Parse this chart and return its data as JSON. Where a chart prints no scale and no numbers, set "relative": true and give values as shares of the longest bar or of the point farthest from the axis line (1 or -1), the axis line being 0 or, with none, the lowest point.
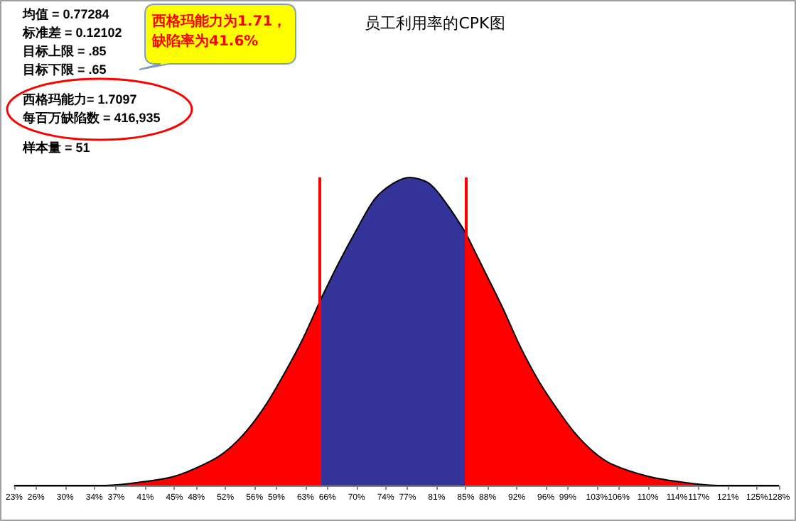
{
  "chart_data": {
    "type": "area",
    "title": "员工利用率的CPK图",
    "relative": true,
    "xlim": [
      23,
      128
    ],
    "xticks": [
      {
        "value": 23,
        "label": "23%"
      },
      {
        "value": 26,
        "label": "26%"
      },
      {
        "value": 30,
        "label": "30%"
      },
      {
        "value": 34,
        "label": "34%"
      },
      {
        "value": 37,
        "label": "37%"
      },
      {
        "value": 41,
        "label": "41%"
      },
      {
        "value": 45,
        "label": "45%"
      },
      {
        "value": 48,
        "label": "48%"
      },
      {
        "value": 52,
        "label": "52%"
      },
      {
        "value": 56,
        "label": "56%"
      },
      {
        "value": 59,
        "label": "59%"
      },
      {
        "value": 63,
        "label": "63%"
      },
      {
        "value": 66,
        "label": "66%"
      },
      {
        "value": 70,
        "label": "70%"
      },
      {
        "value": 74,
        "label": "74%"
      },
      {
        "value": 77,
        "label": "77%"
      },
      {
        "value": 81,
        "label": "81%"
      },
      {
        "value": 85,
        "label": "85%"
      },
      {
        "value": 88,
        "label": "88%"
      },
      {
        "value": 92,
        "label": "92%"
      },
      {
        "value": 96,
        "label": "96%"
      },
      {
        "value": 99,
        "label": "99%"
      },
      {
        "value": 103,
        "label": "103%"
      },
      {
        "value": 106,
        "label": "106%"
      },
      {
        "value": 110,
        "label": "110%"
      },
      {
        "value": 114,
        "label": "114%"
      },
      {
        "value": 117,
        "label": "117%"
      },
      {
        "value": 121,
        "label": "121%"
      },
      {
        "value": 125,
        "label": "125%"
      },
      {
        "value": 128,
        "label": "128%"
      }
    ],
    "series": [
      {
        "color": "#ff0000",
        "x": [
          23,
          30,
          35,
          40,
          45,
          50,
          52.5,
          55,
          57.5,
          60,
          62.5,
          65
        ],
        "values": [
          0,
          0,
          0,
          0.01,
          0.03,
          0.08,
          0.12,
          0.18,
          0.26,
          0.36,
          0.47,
          0.6
        ]
      },
      {
        "color": "#333399",
        "x": [
          65,
          67.5,
          70,
          72.5,
          75,
          77.3,
          80,
          82.5,
          85
        ],
        "values": [
          0.6,
          0.72,
          0.83,
          0.93,
          0.98,
          1,
          0.98,
          0.91,
          0.82
        ]
      },
      {
        "color": "#ff0000",
        "x": [
          85,
          87.5,
          90,
          92.5,
          95,
          97.5,
          100,
          102.5,
          105,
          110,
          115,
          120,
          128
        ],
        "values": [
          0.82,
          0.7,
          0.58,
          0.45,
          0.34,
          0.25,
          0.17,
          0.11,
          0.07,
          0.03,
          0.01,
          0,
          0
        ]
      }
    ],
    "ref_lines": [
      {
        "axis": "x",
        "value": 65,
        "color": "#ff0000"
      },
      {
        "axis": "x",
        "value": 85,
        "color": "#ff0000"
      }
    ],
    "annotations": [
      "均值 = 0.77284",
      "标准差 = 0.12102",
      "目标上限 = .85",
      "目标下限 = .65",
      "西格玛能力= 1.7097",
      "每百万缺陷数 = 416,935",
      "样本量 = 51",
      "西格玛能力为1.71，缺陷率为41.6%"
    ]
  }
}
